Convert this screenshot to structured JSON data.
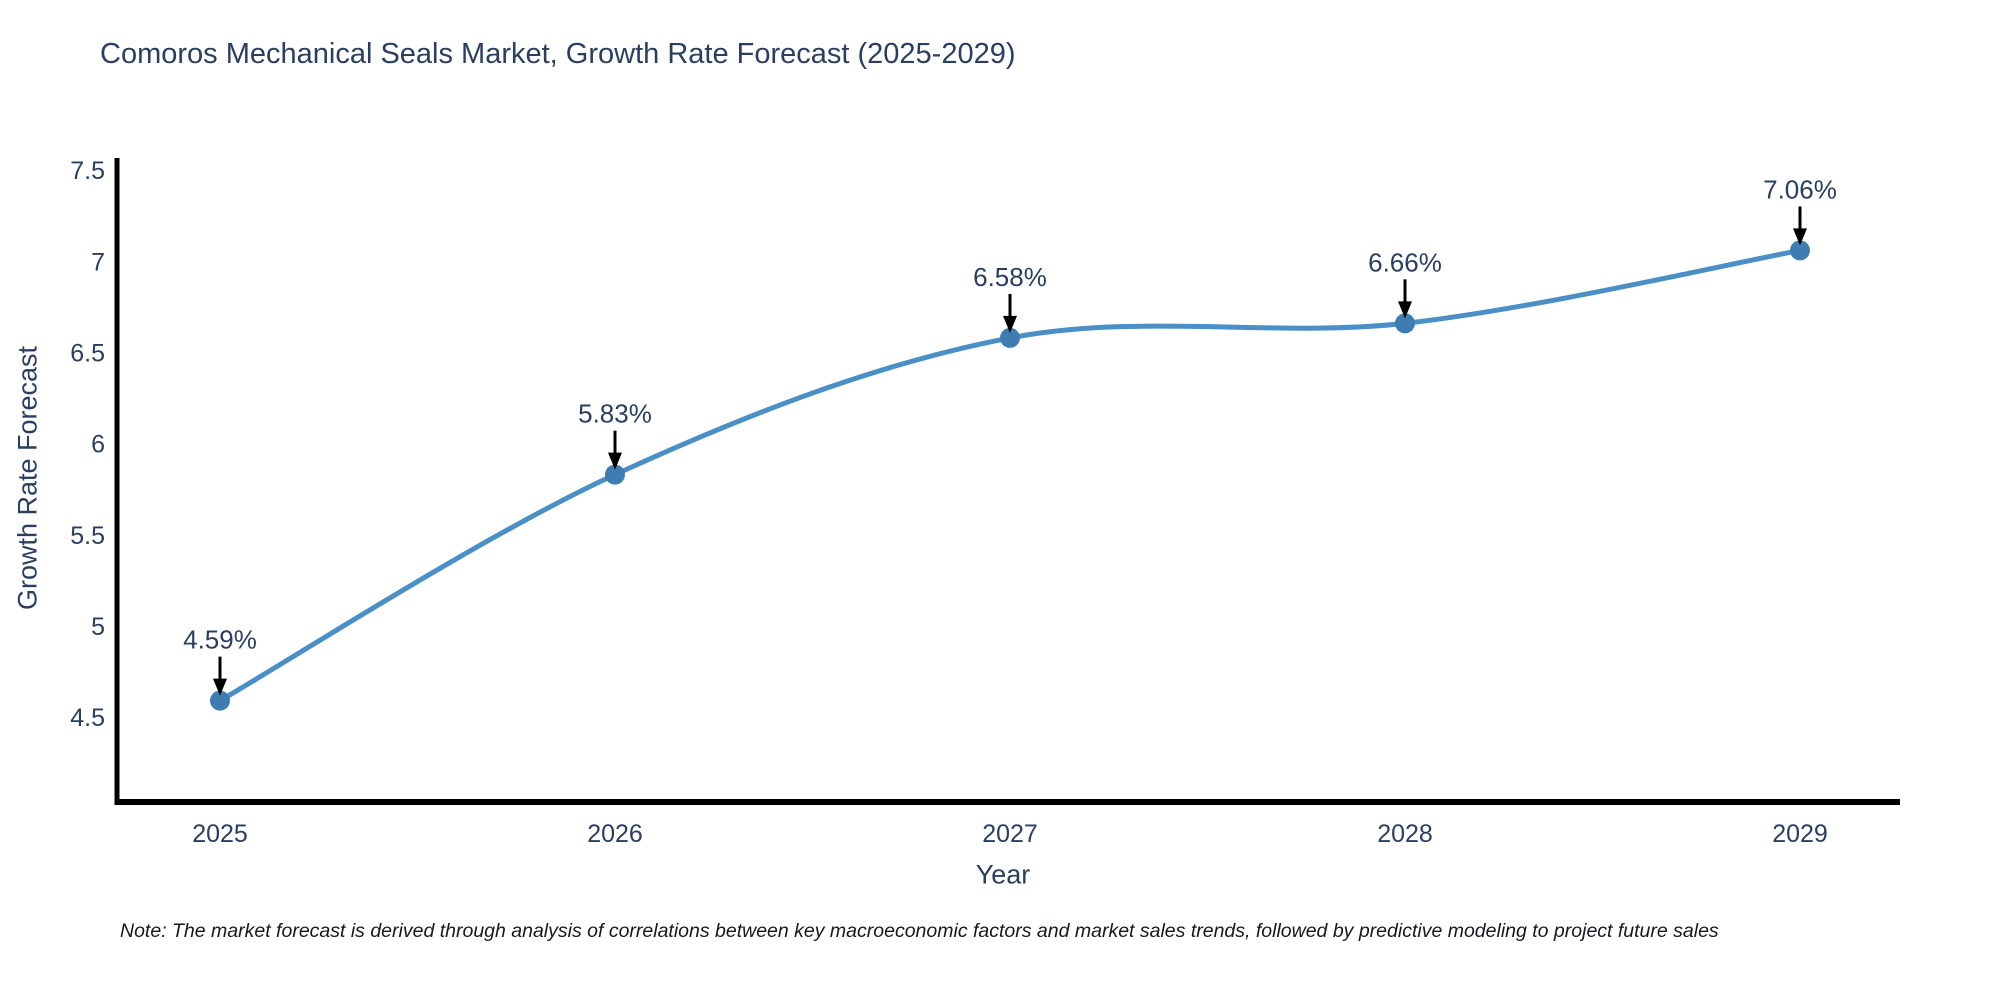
{
  "chart_data": {
    "type": "line",
    "title": "Comoros Mechanical Seals Market, Growth Rate Forecast (2025-2029)",
    "xlabel": "Year",
    "ylabel": "Growth Rate Forecast",
    "categories": [
      "2025",
      "2026",
      "2027",
      "2028",
      "2029"
    ],
    "series": [
      {
        "name": "Growth Rate Forecast",
        "values": [
          4.59,
          5.83,
          6.58,
          6.66,
          7.06
        ]
      }
    ],
    "point_labels": [
      "4.59%",
      "5.83%",
      "6.58%",
      "6.66%",
      "7.06%"
    ],
    "yticks": [
      "4.5",
      "5",
      "5.5",
      "6",
      "6.5",
      "7",
      "7.5"
    ],
    "ylim": [
      4.034,
      7.556
    ],
    "grid": false,
    "legend": "none",
    "line_color": "#4a8fc6",
    "marker_color": "#3e7cb1",
    "axis_color": "#000000",
    "text_color": "#2a3f5f",
    "annotation_arrow_color": "#000000"
  },
  "note": {
    "text": "Note: The market forecast is derived through analysis of correlations between key macroeconomic factors and market sales trends, followed by predictive modeling to project future sales"
  }
}
